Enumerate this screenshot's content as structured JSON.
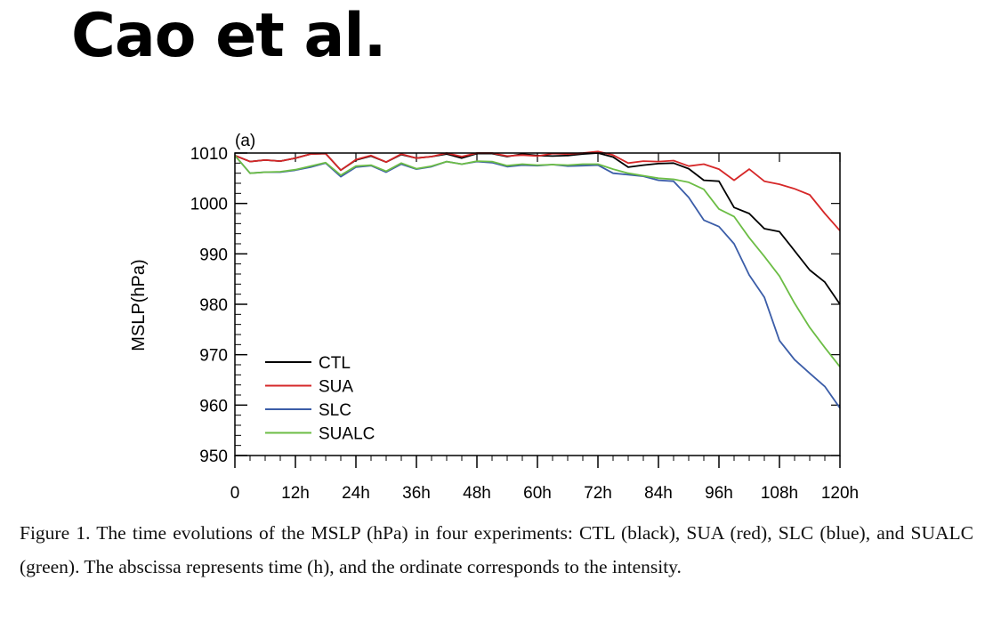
{
  "slide": {
    "title": "Cao et al."
  },
  "caption": {
    "text": "Figure 1. The time evolutions of the MSLP (hPa) in four experiments: CTL (black), SUA (red), SLC (blue), and SUALC (green). The abscissa represents time (h), and the ordinate corresponds to the intensity."
  },
  "chart_data": {
    "type": "line",
    "panel_label": "(a)",
    "title": "",
    "xlabel": "",
    "ylabel": "MSLP(hPa)",
    "xlim": [
      0,
      120
    ],
    "ylim": [
      950,
      1010
    ],
    "x_ticks": [
      0,
      12,
      24,
      36,
      48,
      60,
      72,
      84,
      96,
      108,
      120
    ],
    "x_tick_labels": [
      "0",
      "12h",
      "24h",
      "36h",
      "48h",
      "60h",
      "72h",
      "84h",
      "96h",
      "108h",
      "120h"
    ],
    "y_ticks": [
      950,
      960,
      970,
      980,
      990,
      1000,
      1010
    ],
    "y_tick_labels": [
      "950",
      "960",
      "970",
      "980",
      "990",
      "1000",
      "1010"
    ],
    "legend_position": "bottom-left",
    "x": [
      0,
      3,
      6,
      9,
      12,
      15,
      18,
      21,
      24,
      27,
      30,
      33,
      36,
      39,
      42,
      45,
      48,
      51,
      54,
      57,
      60,
      63,
      66,
      69,
      72,
      75,
      78,
      81,
      84,
      87,
      90,
      93,
      96,
      99,
      102,
      105,
      108,
      111,
      114,
      117,
      120
    ],
    "series": [
      {
        "name": "CTL",
        "color": "#000000",
        "values": [
          1009.5,
          1008.3,
          1008.6,
          1008.4,
          1009.0,
          1009.8,
          1009.9,
          1006.6,
          1008.6,
          1009.4,
          1008.2,
          1009.7,
          1009.0,
          1009.3,
          1009.8,
          1009.0,
          1009.9,
          1009.9,
          1009.3,
          1009.8,
          1009.5,
          1009.4,
          1009.5,
          1009.8,
          1010.0,
          1009.2,
          1007.2,
          1007.6,
          1007.9,
          1008.0,
          1006.9,
          1004.6,
          1004.4,
          999.2,
          998.0,
          995.0,
          994.4,
          990.6,
          986.8,
          984.4,
          980.0
        ]
      },
      {
        "name": "SUA",
        "color": "#d62728",
        "values": [
          1009.5,
          1008.3,
          1008.6,
          1008.4,
          1009.0,
          1009.8,
          1009.9,
          1006.6,
          1008.7,
          1009.5,
          1008.2,
          1009.8,
          1009.0,
          1009.3,
          1010.0,
          1009.3,
          1010.0,
          1010.0,
          1009.4,
          1009.6,
          1009.4,
          1009.9,
          1009.8,
          1010.0,
          1010.3,
          1009.6,
          1008.0,
          1008.4,
          1008.3,
          1008.5,
          1007.4,
          1007.8,
          1006.8,
          1004.6,
          1006.8,
          1004.4,
          1003.8,
          1002.9,
          1001.7,
          998.0,
          994.6
        ]
      },
      {
        "name": "SLC",
        "color": "#3b5da8",
        "values": [
          1009.5,
          1006.0,
          1006.2,
          1006.2,
          1006.6,
          1007.2,
          1008.0,
          1005.3,
          1007.2,
          1007.5,
          1006.2,
          1007.8,
          1006.8,
          1007.3,
          1008.3,
          1007.8,
          1008.3,
          1008.1,
          1007.3,
          1007.6,
          1007.5,
          1007.7,
          1007.4,
          1007.5,
          1007.6,
          1006.0,
          1005.7,
          1005.4,
          1004.6,
          1004.4,
          1001.2,
          996.7,
          995.4,
          992.0,
          985.8,
          981.4,
          972.8,
          969.0,
          966.3,
          963.7,
          959.4
        ]
      },
      {
        "name": "SUALC",
        "color": "#6cbd45",
        "values": [
          1009.5,
          1006.0,
          1006.2,
          1006.3,
          1006.7,
          1007.4,
          1008.1,
          1005.6,
          1007.4,
          1007.6,
          1006.4,
          1008.0,
          1006.9,
          1007.4,
          1008.3,
          1007.8,
          1008.4,
          1008.3,
          1007.5,
          1007.8,
          1007.6,
          1007.7,
          1007.6,
          1007.8,
          1007.8,
          1006.8,
          1006.0,
          1005.5,
          1005.0,
          1004.8,
          1004.2,
          1002.8,
          998.9,
          997.4,
          993.2,
          989.5,
          985.6,
          980.2,
          975.4,
          971.4,
          967.6
        ]
      }
    ]
  }
}
